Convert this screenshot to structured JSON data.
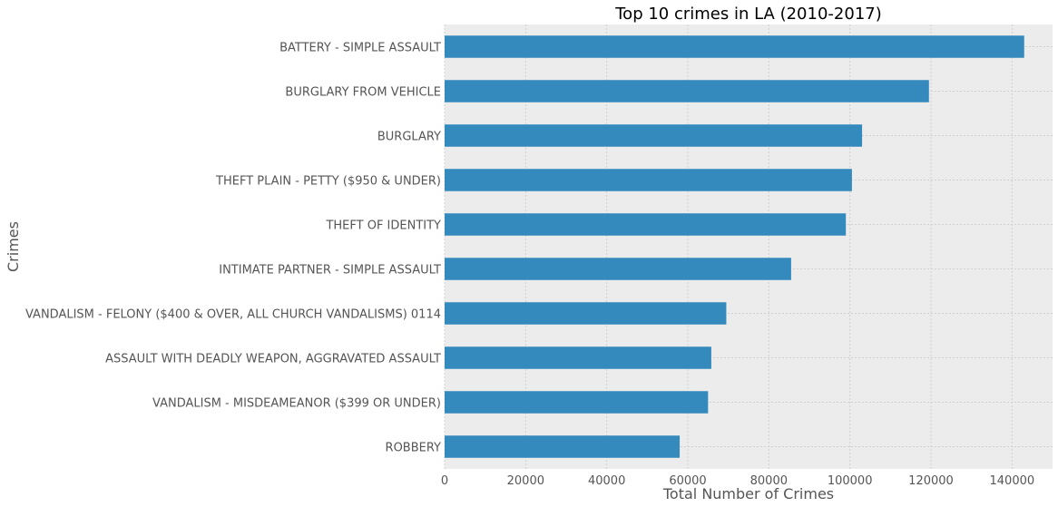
{
  "chart_data": {
    "type": "bar",
    "orientation": "horizontal",
    "title": "Top 10 crimes in LA (2010-2017)",
    "xlabel": "Total Number of Crimes",
    "ylabel": "Crimes",
    "xlim": [
      0,
      150000
    ],
    "xticks": [
      0,
      20000,
      40000,
      60000,
      80000,
      100000,
      120000,
      140000
    ],
    "xtick_labels": [
      "0",
      "20000",
      "40000",
      "60000",
      "80000",
      "100000",
      "120000",
      "140000"
    ],
    "grid": true,
    "categories": [
      "BATTERY - SIMPLE ASSAULT",
      "BURGLARY FROM VEHICLE",
      "BURGLARY",
      "THEFT PLAIN - PETTY ($950 & UNDER)",
      "THEFT OF IDENTITY",
      "INTIMATE PARTNER - SIMPLE ASSAULT",
      "VANDALISM - FELONY ($400 & OVER, ALL CHURCH VANDALISMS) 0114",
      "ASSAULT WITH DEADLY WEAPON, AGGRAVATED ASSAULT",
      "VANDALISM - MISDEAMEANOR ($399 OR UNDER)",
      "ROBBERY"
    ],
    "values": [
      143000,
      119500,
      103000,
      100500,
      99000,
      85500,
      69500,
      65800,
      65000,
      58000
    ]
  },
  "colors": {
    "bar": "#348abd",
    "plot_background": "#ececec",
    "grid": "#cfcfcf",
    "tick_text": "#555555",
    "title_text": "#000000"
  }
}
